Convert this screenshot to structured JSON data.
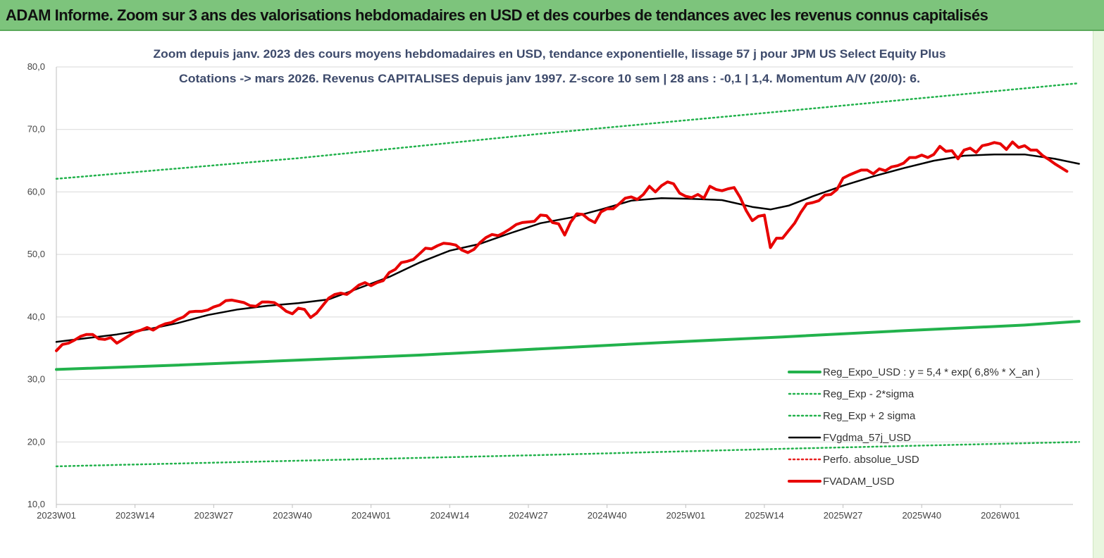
{
  "banner": {
    "title": "ADAM Informe. Zoom sur 3 ans des valorisations hebdomadaires en USD et des courbes de tendances avec les revenus connus capitalisés",
    "background": "#7dc47c"
  },
  "chart_data": {
    "type": "line",
    "subtitle_line1": "Zoom depuis janv. 2023 des cours moyens hebdomadaires en USD, tendance exponentielle, lissage 57 j pour JPM US Select Equity Plus",
    "subtitle_line2": "Cotations -> mars 2026. Revenus CAPITALISES depuis janv 1997. Z-score 10 sem | 28 ans : -0,1 | 1,4. Momentum A/V (20/0): 6.",
    "ylim": [
      10,
      80
    ],
    "y_ticks": [
      "80,0",
      "70,0",
      "60,0",
      "50,0",
      "40,0",
      "30,0",
      "20,0",
      "10,0"
    ],
    "x_range_weeks": [
      0,
      168
    ],
    "x_ticks": [
      {
        "label": "2023W01",
        "week": 0
      },
      {
        "label": "2023W14",
        "week": 13
      },
      {
        "label": "2023W27",
        "week": 26
      },
      {
        "label": "2023W40",
        "week": 39
      },
      {
        "label": "2024W01",
        "week": 52
      },
      {
        "label": "2024W14",
        "week": 65
      },
      {
        "label": "2024W27",
        "week": 78
      },
      {
        "label": "2024W40",
        "week": 91
      },
      {
        "label": "2025W01",
        "week": 104
      },
      {
        "label": "2025W14",
        "week": 117
      },
      {
        "label": "2025W27",
        "week": 130
      },
      {
        "label": "2025W40",
        "week": 143
      },
      {
        "label": "2026W01",
        "week": 156
      }
    ],
    "grid": "horizontal",
    "legend_position": "bottom-right",
    "series": [
      {
        "name": "Reg_Expo_USD : y = 5,4 * exp( 6,8% *  X_an )",
        "color": "#22b24c",
        "style": "solid-thick",
        "points": [
          [
            0,
            31.6
          ],
          [
            20,
            32.3
          ],
          [
            40,
            33.1
          ],
          [
            60,
            33.9
          ],
          [
            80,
            34.9
          ],
          [
            100,
            35.9
          ],
          [
            120,
            36.8
          ],
          [
            140,
            37.8
          ],
          [
            160,
            38.7
          ],
          [
            169,
            39.3
          ]
        ]
      },
      {
        "name": "Reg_Exp - 2*sigma",
        "color": "#22b24c",
        "style": "dotted",
        "points": [
          [
            0,
            16.1
          ],
          [
            40,
            17.0
          ],
          [
            80,
            17.9
          ],
          [
            120,
            18.9
          ],
          [
            169,
            20.0
          ]
        ]
      },
      {
        "name": "Reg_Exp + 2 sigma",
        "color": "#22b24c",
        "style": "dotted",
        "points": [
          [
            0,
            62.1
          ],
          [
            40,
            65.4
          ],
          [
            80,
            69.3
          ],
          [
            120,
            72.9
          ],
          [
            169,
            77.4
          ]
        ]
      },
      {
        "name": "FVgdma_57j_USD",
        "color": "#000000",
        "style": "solid",
        "points": [
          [
            0,
            36.0
          ],
          [
            5,
            36.6
          ],
          [
            10,
            37.2
          ],
          [
            15,
            38.0
          ],
          [
            20,
            39.0
          ],
          [
            25,
            40.3
          ],
          [
            30,
            41.2
          ],
          [
            35,
            41.8
          ],
          [
            40,
            42.2
          ],
          [
            45,
            42.8
          ],
          [
            50,
            44.6
          ],
          [
            55,
            46.4
          ],
          [
            60,
            48.7
          ],
          [
            65,
            50.6
          ],
          [
            70,
            51.7
          ],
          [
            75,
            53.4
          ],
          [
            80,
            55.0
          ],
          [
            85,
            55.9
          ],
          [
            90,
            57.2
          ],
          [
            95,
            58.6
          ],
          [
            100,
            59.0
          ],
          [
            105,
            58.9
          ],
          [
            110,
            58.7
          ],
          [
            115,
            57.6
          ],
          [
            118,
            57.2
          ],
          [
            121,
            57.8
          ],
          [
            125,
            59.3
          ],
          [
            130,
            61.0
          ],
          [
            135,
            62.5
          ],
          [
            140,
            63.8
          ],
          [
            145,
            65.0
          ],
          [
            150,
            65.8
          ],
          [
            155,
            66.0
          ],
          [
            160,
            66.0
          ],
          [
            165,
            65.3
          ],
          [
            169,
            64.5
          ]
        ]
      },
      {
        "name": "Perfo. absolue_USD",
        "color": "#e82020",
        "style": "dotted",
        "points": []
      },
      {
        "name": "FVADAM_USD",
        "color": "#e80000",
        "style": "solid-thick",
        "points": [
          [
            0,
            34.6
          ],
          [
            1,
            35.6
          ],
          [
            2,
            35.8
          ],
          [
            3,
            36.3
          ],
          [
            4,
            36.9
          ],
          [
            5,
            37.2
          ],
          [
            6,
            37.2
          ],
          [
            7,
            36.5
          ],
          [
            8,
            36.4
          ],
          [
            9,
            36.7
          ],
          [
            10,
            35.8
          ],
          [
            11,
            36.4
          ],
          [
            12,
            37.0
          ],
          [
            13,
            37.6
          ],
          [
            14,
            37.9
          ],
          [
            15,
            38.3
          ],
          [
            16,
            37.9
          ],
          [
            17,
            38.5
          ],
          [
            18,
            38.9
          ],
          [
            19,
            39.1
          ],
          [
            20,
            39.6
          ],
          [
            21,
            40.0
          ],
          [
            22,
            40.8
          ],
          [
            23,
            40.9
          ],
          [
            24,
            40.9
          ],
          [
            25,
            41.1
          ],
          [
            26,
            41.6
          ],
          [
            27,
            41.9
          ],
          [
            28,
            42.6
          ],
          [
            29,
            42.7
          ],
          [
            30,
            42.5
          ],
          [
            31,
            42.3
          ],
          [
            32,
            41.8
          ],
          [
            33,
            41.7
          ],
          [
            34,
            42.4
          ],
          [
            35,
            42.4
          ],
          [
            36,
            42.3
          ],
          [
            37,
            41.7
          ],
          [
            38,
            40.9
          ],
          [
            39,
            40.5
          ],
          [
            40,
            41.4
          ],
          [
            41,
            41.2
          ],
          [
            42,
            39.9
          ],
          [
            43,
            40.6
          ],
          [
            44,
            41.8
          ],
          [
            45,
            43.0
          ],
          [
            46,
            43.6
          ],
          [
            47,
            43.8
          ],
          [
            48,
            43.6
          ],
          [
            49,
            44.3
          ],
          [
            50,
            45.1
          ],
          [
            51,
            45.5
          ],
          [
            52,
            45.0
          ],
          [
            53,
            45.5
          ],
          [
            54,
            45.8
          ],
          [
            55,
            47.1
          ],
          [
            56,
            47.6
          ],
          [
            57,
            48.7
          ],
          [
            58,
            48.9
          ],
          [
            59,
            49.2
          ],
          [
            60,
            50.1
          ],
          [
            61,
            51.0
          ],
          [
            62,
            50.9
          ],
          [
            63,
            51.4
          ],
          [
            64,
            51.8
          ],
          [
            65,
            51.7
          ],
          [
            66,
            51.5
          ],
          [
            67,
            50.7
          ],
          [
            68,
            50.3
          ],
          [
            69,
            50.8
          ],
          [
            70,
            51.9
          ],
          [
            71,
            52.7
          ],
          [
            72,
            53.2
          ],
          [
            73,
            53.0
          ],
          [
            74,
            53.5
          ],
          [
            75,
            54.1
          ],
          [
            76,
            54.8
          ],
          [
            77,
            55.1
          ],
          [
            78,
            55.2
          ],
          [
            79,
            55.3
          ],
          [
            80,
            56.3
          ],
          [
            81,
            56.2
          ],
          [
            82,
            55.1
          ],
          [
            83,
            54.9
          ],
          [
            84,
            53.1
          ],
          [
            85,
            55.2
          ],
          [
            86,
            56.5
          ],
          [
            87,
            56.4
          ],
          [
            88,
            55.6
          ],
          [
            89,
            55.1
          ],
          [
            90,
            56.8
          ],
          [
            91,
            57.3
          ],
          [
            92,
            57.3
          ],
          [
            93,
            58.1
          ],
          [
            94,
            59.0
          ],
          [
            95,
            59.2
          ],
          [
            96,
            58.8
          ],
          [
            97,
            59.6
          ],
          [
            98,
            60.9
          ],
          [
            99,
            60.0
          ],
          [
            100,
            61.0
          ],
          [
            101,
            61.6
          ],
          [
            102,
            61.3
          ],
          [
            103,
            59.8
          ],
          [
            104,
            59.3
          ],
          [
            105,
            59.1
          ],
          [
            106,
            59.6
          ],
          [
            107,
            59.0
          ],
          [
            108,
            60.9
          ],
          [
            109,
            60.4
          ],
          [
            110,
            60.2
          ],
          [
            111,
            60.5
          ],
          [
            112,
            60.7
          ],
          [
            113,
            59.1
          ],
          [
            114,
            57.0
          ],
          [
            115,
            55.4
          ],
          [
            116,
            56.1
          ],
          [
            117,
            56.3
          ],
          [
            118,
            51.1
          ],
          [
            119,
            52.6
          ],
          [
            120,
            52.6
          ],
          [
            121,
            53.8
          ],
          [
            122,
            55.0
          ],
          [
            123,
            56.7
          ],
          [
            124,
            58.1
          ],
          [
            125,
            58.3
          ],
          [
            126,
            58.6
          ],
          [
            127,
            59.5
          ],
          [
            128,
            59.6
          ],
          [
            129,
            60.4
          ],
          [
            130,
            62.2
          ],
          [
            131,
            62.7
          ],
          [
            132,
            63.1
          ],
          [
            133,
            63.5
          ],
          [
            134,
            63.5
          ],
          [
            135,
            62.9
          ],
          [
            136,
            63.7
          ],
          [
            137,
            63.4
          ],
          [
            138,
            64.0
          ],
          [
            139,
            64.2
          ],
          [
            140,
            64.6
          ],
          [
            141,
            65.5
          ],
          [
            142,
            65.5
          ],
          [
            143,
            65.9
          ],
          [
            144,
            65.5
          ],
          [
            145,
            66.0
          ],
          [
            146,
            67.3
          ],
          [
            147,
            66.5
          ],
          [
            148,
            66.6
          ],
          [
            149,
            65.3
          ],
          [
            150,
            66.7
          ],
          [
            151,
            67.0
          ],
          [
            152,
            66.3
          ],
          [
            153,
            67.4
          ],
          [
            154,
            67.6
          ],
          [
            155,
            67.9
          ],
          [
            156,
            67.7
          ],
          [
            157,
            66.8
          ],
          [
            158,
            68.0
          ],
          [
            159,
            67.1
          ],
          [
            160,
            67.4
          ],
          [
            161,
            66.7
          ],
          [
            162,
            66.7
          ],
          [
            163,
            65.8
          ],
          [
            164,
            65.2
          ],
          [
            165,
            64.5
          ],
          [
            166,
            63.9
          ],
          [
            167,
            63.3
          ]
        ]
      }
    ]
  }
}
